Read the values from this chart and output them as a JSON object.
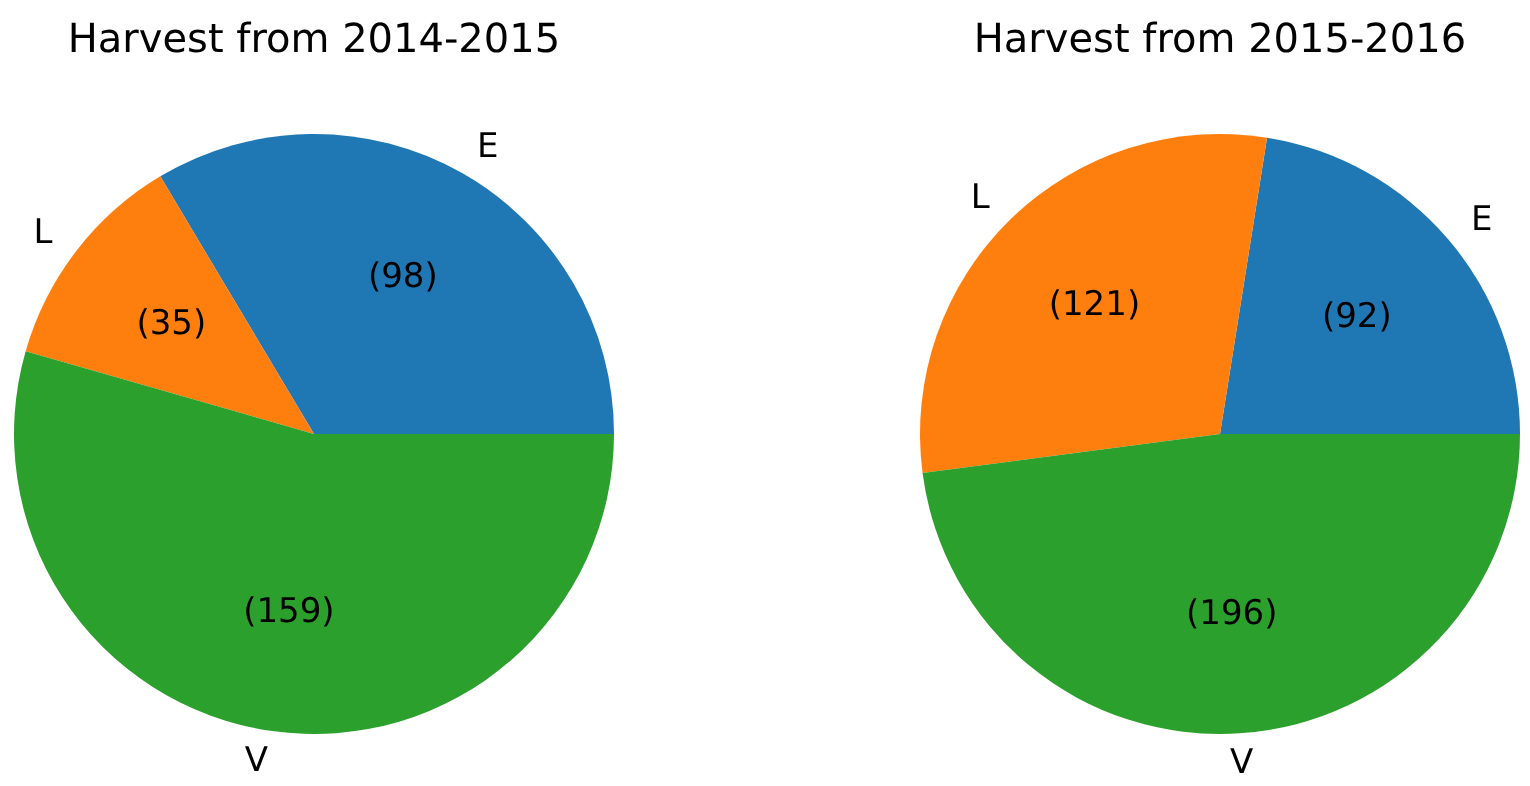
{
  "chart_data": [
    {
      "type": "pie",
      "title": "Harvest from 2014-2015",
      "categories": [
        "E",
        "L",
        "V"
      ],
      "values": [
        98,
        35,
        159
      ],
      "colors": [
        "#1f77b4",
        "#ff7f0e",
        "#2ca02c"
      ],
      "value_labels": [
        "(98)",
        "(35)",
        "(159)"
      ]
    },
    {
      "type": "pie",
      "title": "Harvest from 2015-2016",
      "categories": [
        "E",
        "L",
        "V"
      ],
      "values": [
        92,
        121,
        196
      ],
      "colors": [
        "#1f77b4",
        "#ff7f0e",
        "#2ca02c"
      ],
      "value_labels": [
        "(92)",
        "(121)",
        "(196)"
      ]
    }
  ]
}
